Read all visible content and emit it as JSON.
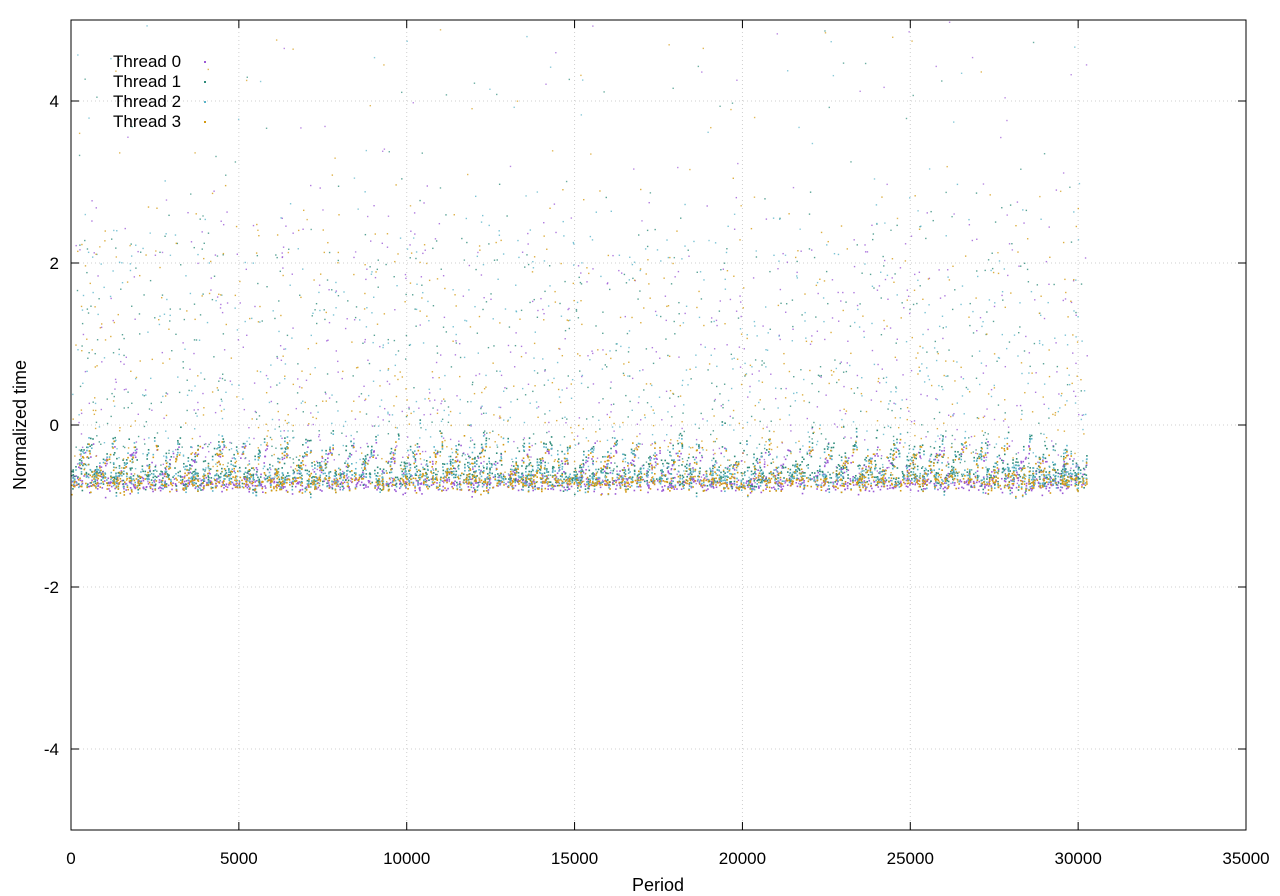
{
  "chart_data": {
    "type": "scatter",
    "title": "",
    "xlabel": "Period",
    "ylabel": "Normalized time",
    "xlim": [
      0,
      35000
    ],
    "ylim": [
      -5,
      5
    ],
    "xticks": [
      0,
      5000,
      10000,
      15000,
      20000,
      25000,
      30000,
      35000
    ],
    "yticks": [
      -4,
      -2,
      0,
      2,
      4
    ],
    "xtick_labels": [
      "0",
      "5000",
      "10000",
      "15000",
      "20000",
      "25000",
      "30000",
      "35000"
    ],
    "ytick_labels": [
      "-4",
      "-2",
      "0",
      "2",
      "4"
    ],
    "grid": true,
    "legend_position": "top-left",
    "x_max_data": 30250,
    "series": [
      {
        "name": "Thread 0",
        "color": "#9b59d6",
        "baseline": -0.72,
        "spread": 0.05
      },
      {
        "name": "Thread 1",
        "color": "#2e8b7a",
        "baseline": -0.62,
        "spread": 0.08
      },
      {
        "name": "Thread 2",
        "color": "#5ab4c9",
        "baseline": -0.66,
        "spread": 0.08
      },
      {
        "name": "Thread 3",
        "color": "#d49a12",
        "baseline": -0.7,
        "spread": 0.06
      }
    ],
    "burst_peaks_y": [
      2.4,
      2.2,
      2.0,
      2.6,
      1.8,
      2.8,
      2.2,
      2.5,
      1.9,
      2.3,
      2.7,
      2.1
    ]
  }
}
